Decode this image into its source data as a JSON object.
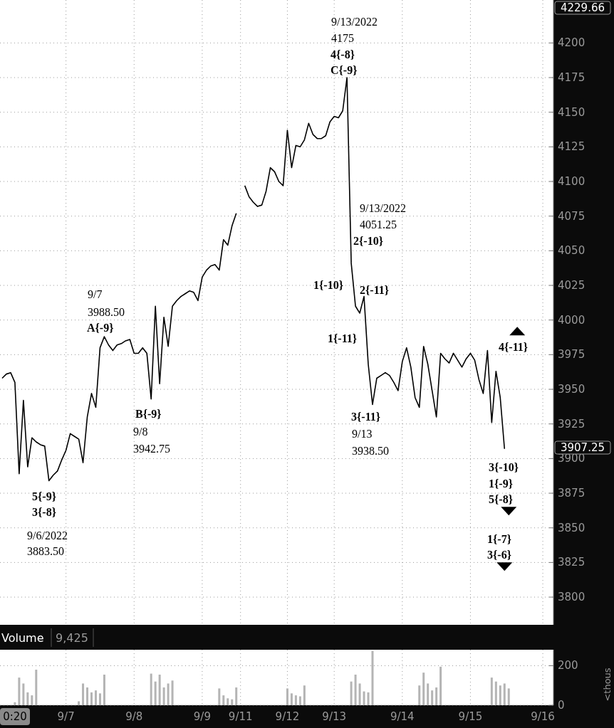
{
  "chart_data": [
    {
      "type": "line",
      "categories": [
        null,
        null,
        null,
        null,
        null,
        null,
        null,
        null,
        null,
        null,
        null,
        null,
        null,
        null,
        null,
        null,
        null,
        null,
        null,
        null,
        null,
        null,
        null,
        null,
        null,
        null,
        null,
        null,
        null,
        null,
        null,
        null,
        null,
        null,
        null,
        null,
        null,
        null,
        null,
        null,
        null,
        null,
        null,
        null,
        null,
        null,
        null,
        null,
        null,
        null,
        null,
        null,
        null,
        null,
        null,
        null,
        null,
        null,
        null,
        null,
        null,
        null,
        null,
        null,
        null,
        null,
        null,
        null,
        null,
        null,
        null,
        null,
        null,
        null,
        null,
        null,
        null,
        null,
        null,
        null,
        null,
        null,
        null,
        null,
        null,
        null,
        null,
        null,
        null,
        null,
        null,
        null,
        null,
        null,
        null,
        null,
        null,
        null,
        null,
        null,
        null,
        null,
        null,
        null,
        null,
        null,
        null,
        null,
        null,
        null,
        null,
        null,
        null,
        null,
        null,
        null,
        null,
        null,
        null,
        null,
        null,
        null,
        null,
        null,
        null,
        null,
        null,
        null,
        null,
        null
      ],
      "ylim": [
        3780,
        4231
      ],
      "yticks": [
        3800,
        3825,
        3850,
        3875,
        3900,
        3925,
        3950,
        3975,
        4000,
        4025,
        4050,
        4075,
        4100,
        4125,
        4150,
        4175,
        4200
      ],
      "grid": true,
      "tick_labels": "y",
      "line_style": "solid",
      "series": [
        {
          "color": "#000000",
          "values": [
            3958,
            3961,
            3962,
            3955,
            3889,
            3942,
            3894,
            3915,
            3912,
            3910,
            3909,
            3884,
            3888,
            3891,
            3899,
            3906,
            3918,
            3916,
            3914,
            3897,
            3930,
            3947,
            3937,
            3980,
            3988,
            3982,
            3978,
            3982,
            3983,
            3985,
            3986,
            3976,
            3976,
            3980,
            3976,
            3943,
            4010,
            3954,
            4002,
            3981,
            4010,
            4014,
            4017,
            4019,
            4021,
            4020,
            4014,
            4031,
            4036,
            4039,
            4040,
            4036,
            4058,
            4054,
            4068,
            4077,
            null,
            4097,
            4089,
            4085,
            4082,
            4083,
            4093,
            4110,
            4107,
            4100,
            4097,
            4137,
            4110,
            4126,
            4125,
            4130,
            4142,
            4134,
            4131,
            4131,
            4133,
            4143,
            4147,
            4146,
            4151,
            4175,
            4041,
            4010,
            4005,
            4017,
            3968,
            3939,
            3958,
            3960,
            3962,
            3960,
            3955,
            3949,
            3970,
            3980,
            3966,
            3944,
            3937,
            3981,
            3968,
            3949,
            3930,
            3976,
            3972,
            3969,
            3976,
            3971,
            3966,
            3972,
            3976,
            3971,
            3957,
            3947,
            3978,
            3926,
            3963,
            3944,
            3907,
            null,
            null,
            null,
            null,
            null,
            null,
            null,
            null,
            null,
            null,
            null
          ]
        },
        {
          "type": "scatter",
          "marker": "triangle",
          "color": "#000000",
          "values": [
            null,
            null,
            null,
            null,
            null,
            null,
            null,
            null,
            null,
            null,
            null,
            null,
            null,
            null,
            null,
            null,
            null,
            null,
            null,
            null,
            null,
            null,
            null,
            null,
            null,
            null,
            null,
            null,
            null,
            null,
            null,
            null,
            null,
            null,
            null,
            null,
            null,
            null,
            null,
            null,
            null,
            null,
            null,
            null,
            null,
            null,
            null,
            null,
            null,
            null,
            null,
            null,
            null,
            null,
            null,
            null,
            null,
            null,
            null,
            null,
            null,
            null,
            null,
            null,
            null,
            null,
            null,
            null,
            null,
            null,
            null,
            null,
            null,
            null,
            null,
            null,
            null,
            null,
            null,
            null,
            null,
            null,
            null,
            null,
            null,
            null,
            null,
            null,
            null,
            null,
            null,
            null,
            null,
            null,
            null,
            null,
            null,
            null,
            null,
            null,
            null,
            null,
            null,
            null,
            null,
            null,
            null,
            null,
            null,
            null,
            null,
            null,
            null,
            null,
            null,
            null,
            null,
            null,
            null,
            null,
            null,
            3992,
            null,
            null,
            null,
            null,
            null,
            null,
            null,
            null
          ]
        },
        {
          "type": "scatter",
          "marker": "triangle",
          "color": "#000000",
          "values": [
            null,
            null,
            null,
            null,
            null,
            null,
            null,
            null,
            null,
            null,
            null,
            null,
            null,
            null,
            null,
            null,
            null,
            null,
            null,
            null,
            null,
            null,
            null,
            null,
            null,
            null,
            null,
            null,
            null,
            null,
            null,
            null,
            null,
            null,
            null,
            null,
            null,
            null,
            null,
            null,
            null,
            null,
            null,
            null,
            null,
            null,
            null,
            null,
            null,
            null,
            null,
            null,
            null,
            null,
            null,
            null,
            null,
            null,
            null,
            null,
            null,
            null,
            null,
            null,
            null,
            null,
            null,
            null,
            null,
            null,
            null,
            null,
            null,
            null,
            null,
            null,
            null,
            null,
            null,
            null,
            null,
            null,
            null,
            null,
            null,
            null,
            null,
            null,
            null,
            null,
            null,
            null,
            null,
            null,
            null,
            null,
            null,
            null,
            null,
            null,
            null,
            null,
            null,
            null,
            null,
            null,
            null,
            null,
            null,
            null,
            null,
            null,
            null,
            null,
            null,
            null,
            null,
            null,
            3822,
            3862,
            null,
            null,
            null,
            null,
            null,
            null,
            null,
            null,
            null,
            null
          ]
        }
      ],
      "annotations": [
        "9/7",
        "3988.50",
        "A{-9}",
        "B{-9}",
        "9/8",
        "3942.75",
        "5{-9}",
        "3{-8}",
        "9/6/2022",
        "3883.50",
        "9/13/2022",
        "4175",
        "4{-8}",
        "C{-9}",
        "9/13/2022",
        "4051.25",
        "2{-10}",
        "1{-10}",
        "2{-11}",
        "1{-11}",
        "3{-11}",
        "9/13",
        "3938.50",
        "4{-11}",
        "3{-10}",
        "1{-9}",
        "5{-8}",
        "1{-7}",
        "3{-6}",
        "4229.66",
        "3907.25"
      ]
    },
    {
      "type": "bar",
      "title": "Volume",
      "subtitle": "9,425",
      "ylabel": "<thous",
      "color": "#b4b4b4",
      "grid": true,
      "categories": [
        null,
        null,
        null,
        null,
        null,
        null,
        null,
        null,
        null,
        null,
        null,
        null,
        null,
        null,
        null,
        "9/7",
        null,
        null,
        null,
        null,
        null,
        null,
        null,
        null,
        null,
        null,
        null,
        null,
        null,
        null,
        null,
        "9/8",
        null,
        null,
        null,
        null,
        null,
        null,
        null,
        null,
        null,
        null,
        null,
        null,
        null,
        null,
        null,
        "9/9",
        null,
        null,
        null,
        null,
        null,
        null,
        null,
        null,
        "9/11",
        null,
        null,
        null,
        null,
        null,
        null,
        null,
        null,
        null,
        null,
        "9/12",
        null,
        null,
        null,
        null,
        null,
        null,
        null,
        null,
        null,
        null,
        "9/13",
        null,
        null,
        null,
        null,
        null,
        null,
        null,
        null,
        null,
        null,
        null,
        null,
        null,
        null,
        null,
        "9/14",
        null,
        null,
        null,
        null,
        null,
        null,
        null,
        null,
        null,
        null,
        null,
        null,
        null,
        null,
        null,
        "9/15",
        null,
        null,
        null,
        null,
        null,
        null,
        null,
        null,
        null,
        null,
        null,
        null,
        null,
        null,
        null,
        null,
        "9/16",
        null,
        null
      ],
      "ylim": [
        0,
        281
      ],
      "yticks": [
        0,
        200
      ],
      "values": [
        null,
        null,
        null,
        15,
        140,
        110,
        65,
        50,
        180,
        null,
        null,
        null,
        null,
        null,
        null,
        null,
        null,
        null,
        20,
        110,
        90,
        65,
        75,
        60,
        155,
        null,
        null,
        null,
        null,
        null,
        null,
        null,
        null,
        null,
        null,
        160,
        120,
        155,
        90,
        110,
        125,
        null,
        null,
        null,
        null,
        null,
        null,
        null,
        null,
        null,
        null,
        85,
        50,
        35,
        30,
        90,
        null,
        null,
        null,
        null,
        null,
        null,
        null,
        null,
        null,
        null,
        null,
        85,
        60,
        50,
        45,
        100,
        null,
        null,
        null,
        null,
        null,
        null,
        null,
        null,
        null,
        null,
        120,
        155,
        110,
        70,
        65,
        275,
        null,
        null,
        null,
        null,
        null,
        null,
        null,
        null,
        null,
        null,
        100,
        165,
        110,
        75,
        90,
        195,
        null,
        null,
        null,
        null,
        null,
        null,
        null,
        null,
        null,
        null,
        null,
        140,
        120,
        100,
        110,
        85,
        null,
        null,
        null,
        null,
        null,
        null,
        null,
        null,
        null,
        null
      ],
      "annotations": [
        "0:20"
      ]
    }
  ]
}
